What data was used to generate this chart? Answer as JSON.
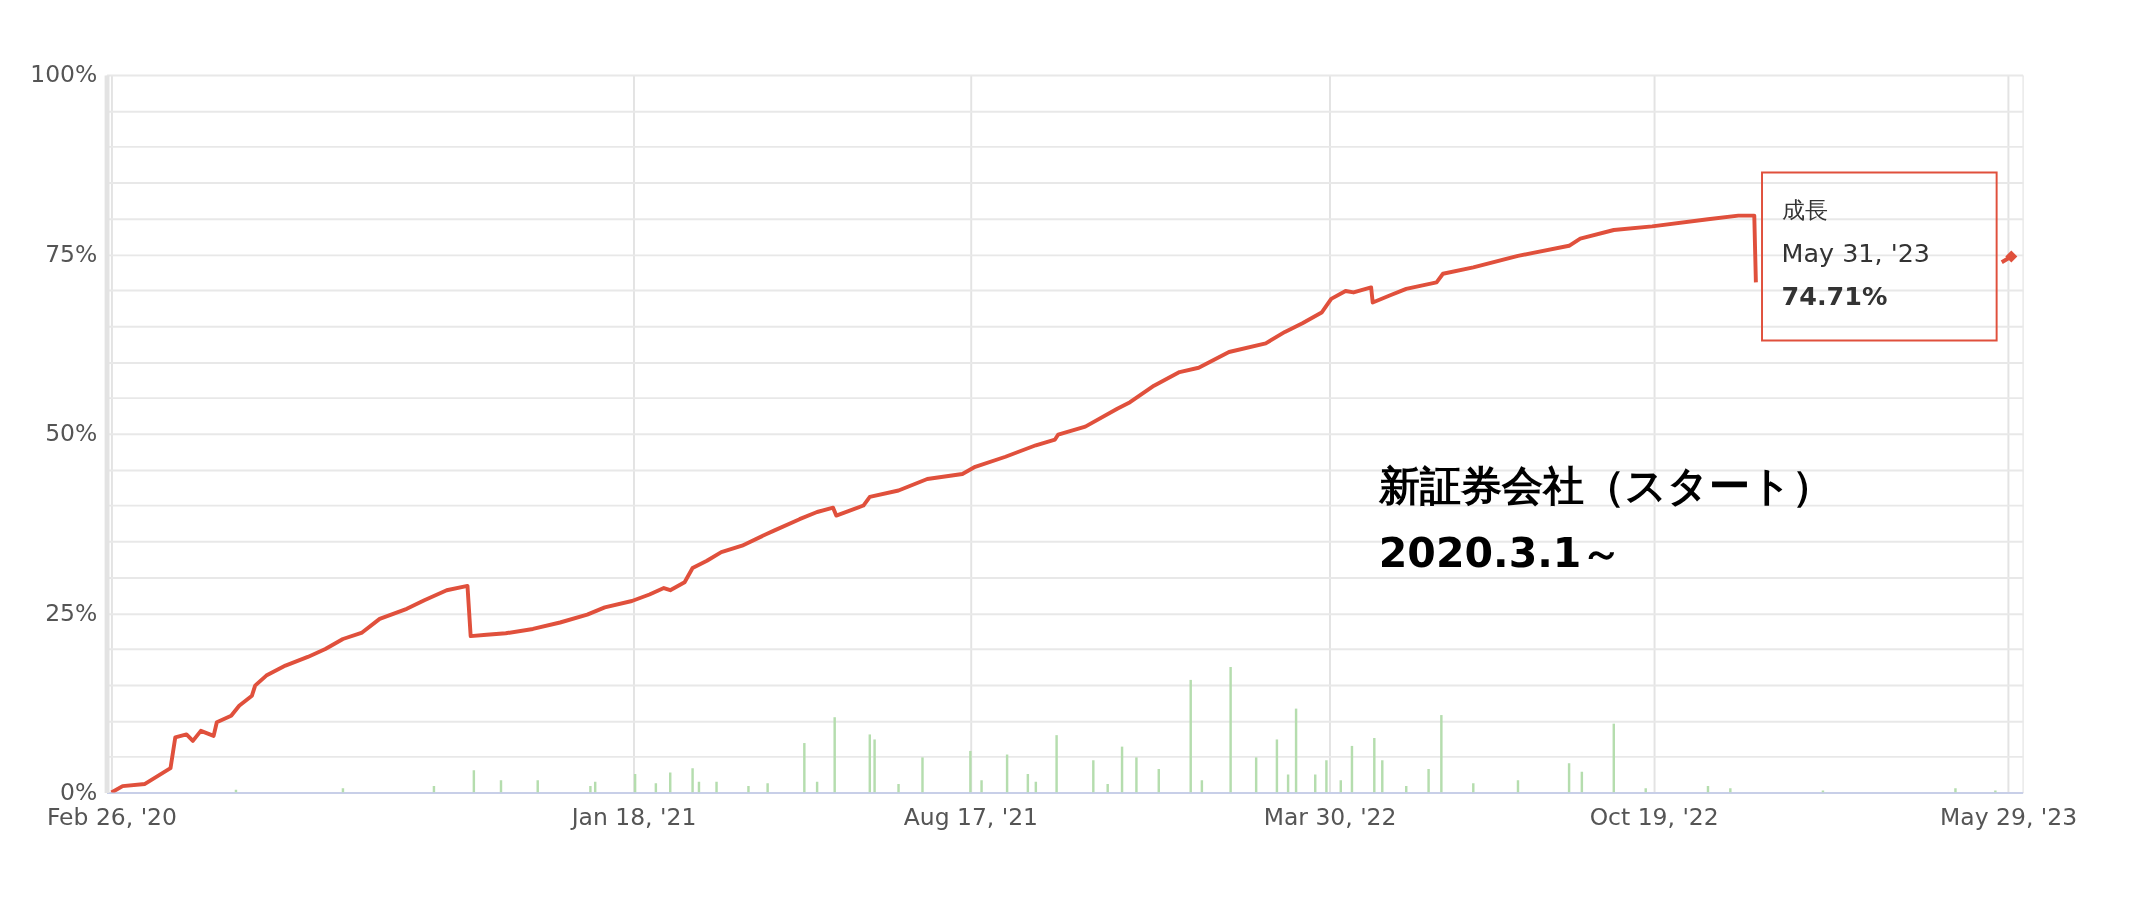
{
  "chart_data": {
    "type": "line",
    "xlim": [
      "2020-02-26",
      "2023-06-04"
    ],
    "ylim": [
      0,
      100
    ],
    "xticks": [
      {
        "value": "2020-02-26",
        "label": "Feb 26, '20"
      },
      {
        "value": "2021-01-18",
        "label": "Jan 18, '21"
      },
      {
        "value": "2021-08-17",
        "label": "Aug 17, '21"
      },
      {
        "value": "2022-03-30",
        "label": "Mar 30, '22"
      },
      {
        "value": "2022-10-19",
        "label": "Oct 19, '22"
      },
      {
        "value": "2023-05-29",
        "label": "May 29, '23"
      }
    ],
    "yticks": [
      {
        "value": 0,
        "label": "0%"
      },
      {
        "value": 5,
        "label": null
      },
      {
        "value": 10,
        "label": null
      },
      {
        "value": 15,
        "label": null
      },
      {
        "value": 20,
        "label": null
      },
      {
        "value": 25,
        "label": "25%"
      },
      {
        "value": 30,
        "label": null
      },
      {
        "value": 35,
        "label": null
      },
      {
        "value": 40,
        "label": null
      },
      {
        "value": 45,
        "label": null
      },
      {
        "value": 50,
        "label": "50%"
      },
      {
        "value": 55,
        "label": null
      },
      {
        "value": 60,
        "label": null
      },
      {
        "value": 65,
        "label": null
      },
      {
        "value": 70,
        "label": null
      },
      {
        "value": 75,
        "label": "75%"
      },
      {
        "value": 80,
        "label": null
      },
      {
        "value": 85,
        "label": null
      },
      {
        "value": 90,
        "label": null
      },
      {
        "value": 95,
        "label": null
      },
      {
        "value": 100,
        "label": "100%"
      }
    ],
    "grid": true,
    "series": [
      {
        "type": "bar",
        "color": "#b5ddae",
        "x": [
          "2020-05-14",
          "2020-07-20",
          "2020-09-15",
          "2020-10-10",
          "2020-10-27",
          "2020-11-19",
          "2020-12-22",
          "2020-12-25",
          "2021-01-19",
          "2021-02-01",
          "2021-02-10",
          "2021-02-24",
          "2021-02-28",
          "2021-03-11",
          "2021-03-31",
          "2021-04-12",
          "2021-05-05",
          "2021-05-13",
          "2021-05-24",
          "2021-06-15",
          "2021-06-18",
          "2021-07-03",
          "2021-07-18",
          "2021-08-17",
          "2021-08-24",
          "2021-09-09",
          "2021-09-22",
          "2021-09-27",
          "2021-10-10",
          "2021-11-02",
          "2021-11-11",
          "2021-11-20",
          "2021-11-29",
          "2021-12-13",
          "2022-01-02",
          "2022-01-09",
          "2022-01-27",
          "2022-02-12",
          "2022-02-25",
          "2022-03-04",
          "2022-03-09",
          "2022-03-21",
          "2022-03-28",
          "2022-04-06",
          "2022-04-13",
          "2022-04-27",
          "2022-05-02",
          "2022-05-17",
          "2022-05-31",
          "2022-06-08",
          "2022-06-28",
          "2022-07-26",
          "2022-08-27",
          "2022-09-04",
          "2022-09-24",
          "2022-10-14",
          "2022-11-22",
          "2022-12-06",
          "2023-02-02",
          "2023-04-26",
          "2023-05-21"
        ],
        "values": [
          0.4,
          0.6,
          0.9,
          3.1,
          1.7,
          1.7,
          0.9,
          1.5,
          2.6,
          1.3,
          2.8,
          3.4,
          1.5,
          1.5,
          0.9,
          1.3,
          6.9,
          1.5,
          10.5,
          8.1,
          7.4,
          1.2,
          4.9,
          5.8,
          1.7,
          5.3,
          2.6,
          1.5,
          8,
          4.5,
          1.2,
          6.4,
          4.9,
          3.3,
          15.7,
          1.7,
          17.5,
          4.9,
          7.4,
          2.5,
          11.7,
          2.5,
          4.5,
          1.7,
          6.5,
          7.6,
          4.5,
          0.9,
          3.3,
          10.8,
          1.3,
          1.7,
          4.1,
          2.9,
          9.6,
          0.6,
          0.9,
          0.6,
          0.3,
          0.6,
          0.3
        ]
      },
      {
        "color": "#e0503c",
        "x": [
          "2020-02-26",
          "2020-03-04",
          "2020-03-18",
          "2020-04-03",
          "2020-04-06",
          "2020-04-13",
          "2020-04-17",
          "2020-04-22",
          "2020-04-30",
          "2020-05-02",
          "2020-05-11",
          "2020-05-16",
          "2020-05-24",
          "2020-05-26",
          "2020-06-02",
          "2020-06-14",
          "2020-06-28",
          "2020-07-09",
          "2020-07-20",
          "2020-08-01",
          "2020-08-12",
          "2020-08-29",
          "2020-09-09",
          "2020-09-23",
          "2020-10-06",
          "2020-10-08",
          "2020-10-18",
          "2020-10-30",
          "2020-11-16",
          "2020-12-03",
          "2020-12-20",
          "2020-12-31",
          "2021-01-17",
          "2021-01-28",
          "2021-02-06",
          "2021-02-10",
          "2021-02-19",
          "2021-02-24",
          "2021-03-05",
          "2021-03-14",
          "2021-03-27",
          "2021-04-11",
          "2021-04-16",
          "2021-05-02",
          "2021-05-13",
          "2021-05-23",
          "2021-05-25",
          "2021-06-11",
          "2021-06-15",
          "2021-07-03",
          "2021-07-21",
          "2021-08-12",
          "2021-08-20",
          "2021-09-08",
          "2021-09-27",
          "2021-10-09",
          "2021-10-11",
          "2021-10-28",
          "2021-11-17",
          "2021-11-25",
          "2021-12-10",
          "2021-12-26",
          "2022-01-07",
          "2022-01-26",
          "2022-02-18",
          "2022-03-02",
          "2022-03-13",
          "2022-03-25",
          "2022-03-31",
          "2022-04-09",
          "2022-04-14",
          "2022-04-25",
          "2022-04-26",
          "2022-05-07",
          "2022-05-17",
          "2022-06-05",
          "2022-06-09",
          "2022-06-28",
          "2022-07-26",
          "2022-08-27",
          "2022-09-03",
          "2022-09-24",
          "2022-10-18",
          "2022-11-22",
          "2022-12-11",
          "2022-12-21",
          "2022-12-22",
          "2023-03-01",
          "2023-05-25",
          "2023-05-31"
        ],
        "values": [
          0,
          0.9,
          1.2,
          3.4,
          7.7,
          8.1,
          7.2,
          8.6,
          7.9,
          9.8,
          10.7,
          12.1,
          13.5,
          14.9,
          16.3,
          17.7,
          18.9,
          20,
          21.4,
          22.3,
          24.2,
          25.6,
          26.8,
          28.2,
          28.8,
          21.8,
          22,
          22.2,
          22.8,
          23.7,
          24.8,
          25.8,
          26.7,
          27.6,
          28.5,
          28.2,
          29.3,
          31.3,
          32.3,
          33.5,
          34.4,
          36,
          36.5,
          38.1,
          39.1,
          39.7,
          38.6,
          40,
          41.2,
          42.1,
          43.7,
          44.4,
          45.4,
          46.8,
          48.4,
          49.2,
          49.9,
          51,
          53.5,
          54.4,
          56.7,
          58.6,
          59.2,
          61.4,
          62.6,
          64.2,
          65.4,
          66.9,
          68.8,
          69.9,
          69.7,
          70.4,
          68.3,
          69.3,
          70.2,
          71.1,
          72.3,
          73.2,
          74.8,
          76.2,
          77.2,
          78.4,
          78.9,
          79.9,
          80.4,
          80.4,
          71.1,
          null,
          73.9,
          74.71
        ]
      }
    ],
    "annotations": [
      "成長",
      "May 31, '23",
      "74.71%",
      "新証券会社（スタート）",
      "2020.3.1～"
    ]
  }
}
